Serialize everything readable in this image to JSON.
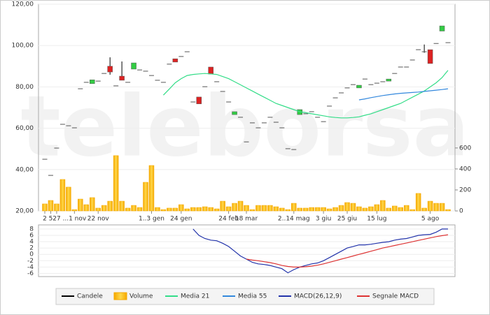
{
  "chart_data": [
    {
      "type": "candlestick",
      "watermark": "teleborsa",
      "categories": [
        "2",
        "5",
        "27",
        null,
        null,
        "...1 nov",
        null,
        null,
        null,
        "22 nov",
        null,
        null,
        null,
        null,
        null,
        null,
        null,
        null,
        "1..3 gen",
        null,
        null,
        null,
        null,
        "24 gen",
        null,
        null,
        null,
        null,
        null,
        null,
        null,
        "24 feb",
        null,
        null,
        "18 mar",
        null,
        null,
        null,
        null,
        null,
        null,
        null,
        "2..14 mag",
        null,
        null,
        null,
        null,
        "3 giu",
        null,
        null,
        null,
        "25 giu",
        null,
        null,
        null,
        null,
        "15 lug",
        null,
        null,
        null,
        null,
        null,
        null,
        null,
        null,
        "5 ago",
        null,
        null,
        null
      ],
      "ylim": [
        20,
        120
      ],
      "yticks": [
        {
          "value": 20,
          "label": "20,00"
        },
        {
          "value": 40,
          "label": "40,00"
        },
        {
          "value": 60,
          "label": "60,00"
        },
        {
          "value": 80,
          "label": "80,00"
        },
        {
          "value": 100,
          "label": "100,00"
        },
        {
          "value": 120,
          "label": "120,00"
        }
      ],
      "y2lim": [
        0,
        1970
      ],
      "y2ticks": [
        0,
        200,
        400,
        600
      ],
      "series": [
        {
          "name": "Candele",
          "color": "#000000",
          "up_color": "#33cc44",
          "down_color": "#dd2222",
          "open": [
            45,
            37.2,
            50.4,
            61.9,
            61.2,
            60.2,
            79.1,
            82.2,
            81.6,
            82.8,
            86.5,
            90,
            80.5,
            85.2,
            82.2,
            88.6,
            88.2,
            87.6,
            85.5,
            83.2,
            82.2,
            91,
            93.6,
            94.7,
            97,
            72.7,
            75.1,
            80.1,
            89.6,
            82.5,
            77.8,
            72.7,
            66.6,
            65.3,
            53.4,
            62.6,
            60.2,
            62.6,
            65.3,
            62.9,
            60.2,
            50.1,
            49.7,
            66.6,
            67,
            68,
            65.3,
            63.2,
            70.7,
            74.7,
            77.1,
            79.5,
            81.1,
            79.5,
            83.8,
            81.1,
            81.8,
            82.5,
            82.8,
            86.5,
            89.6,
            89.6,
            93,
            98,
            97,
            98,
            101,
            107,
            101.4
          ],
          "close": [
            45,
            37.2,
            50.4,
            61.9,
            61.2,
            60.2,
            79.1,
            82.2,
            83.4,
            82.8,
            86.5,
            87.2,
            80.5,
            83.2,
            82.2,
            91.6,
            88.2,
            87.6,
            85.5,
            83.2,
            82.2,
            91,
            92,
            94.7,
            97,
            72.7,
            71.8,
            80.1,
            86.2,
            82.5,
            77.8,
            72.7,
            68,
            65.3,
            53.4,
            62.6,
            60.2,
            62.6,
            65.3,
            62.9,
            60.2,
            50.1,
            49.7,
            69,
            67,
            68,
            65.3,
            63.2,
            70.7,
            74.7,
            77.1,
            79.5,
            81.1,
            80.8,
            83.8,
            81.1,
            81.8,
            82.5,
            83.8,
            86.5,
            89.6,
            89.6,
            93,
            98,
            97,
            91.3,
            101,
            109.5,
            101.4
          ],
          "high": [
            null,
            null,
            null,
            null,
            null,
            null,
            null,
            null,
            null,
            null,
            null,
            94.3,
            null,
            92.3,
            null,
            null,
            null,
            null,
            null,
            null,
            null,
            null,
            null,
            null,
            null,
            null,
            null,
            null,
            null,
            null,
            null,
            null,
            null,
            null,
            null,
            null,
            null,
            null,
            null,
            null,
            null,
            null,
            null,
            null,
            null,
            null,
            null,
            null,
            null,
            null,
            null,
            null,
            null,
            null,
            null,
            null,
            null,
            null,
            null,
            null,
            null,
            null,
            null,
            null,
            100.5,
            null,
            null,
            null,
            null
          ],
          "low": [
            null,
            null,
            null,
            null,
            null,
            null,
            null,
            null,
            null,
            null,
            null,
            85.9,
            null,
            83.2,
            null,
            null,
            null,
            null,
            null,
            null,
            null,
            null,
            null,
            null,
            null,
            null,
            null,
            null,
            null,
            null,
            null,
            null,
            null,
            null,
            null,
            null,
            null,
            null,
            null,
            null,
            null,
            null,
            null,
            null,
            null,
            null,
            null,
            null,
            null,
            null,
            null,
            null,
            null,
            null,
            null,
            null,
            null,
            null,
            null,
            null,
            null,
            null,
            null,
            null,
            96.5,
            null,
            null,
            null,
            null
          ]
        },
        {
          "name": "Volume",
          "type": "bar",
          "axis": "y2",
          "color": "#f5a800",
          "values": [
            67,
            100,
            67,
            300,
            227,
            13,
            113,
            60,
            127,
            27,
            53,
            93,
            527,
            93,
            27,
            53,
            33,
            273,
            433,
            33,
            13,
            27,
            27,
            60,
            20,
            33,
            33,
            40,
            33,
            20,
            93,
            40,
            73,
            93,
            53,
            13,
            53,
            53,
            53,
            40,
            27,
            13,
            73,
            27,
            27,
            33,
            33,
            33,
            20,
            33,
            53,
            80,
            73,
            40,
            27,
            40,
            60,
            100,
            27,
            47,
            33,
            53,
            13,
            167,
            27,
            93,
            73,
            73,
            13
          ]
        },
        {
          "name": "Media 21",
          "type": "line",
          "color": "#33dd88",
          "values": [
            null,
            null,
            null,
            null,
            null,
            null,
            null,
            null,
            null,
            null,
            null,
            null,
            null,
            null,
            null,
            null,
            null,
            null,
            null,
            null,
            76,
            79,
            82,
            84,
            85.5,
            86,
            86.3,
            86.5,
            86.3,
            86,
            85,
            84,
            82.5,
            81,
            79.5,
            78,
            76.5,
            75,
            73.5,
            72,
            71,
            70,
            69,
            68,
            67.5,
            67,
            66.5,
            66,
            65.5,
            65.2,
            65,
            65,
            65.2,
            65.5,
            66.3,
            67,
            68,
            69,
            70,
            71,
            72,
            73.5,
            75,
            76.5,
            78,
            80,
            82,
            84.5,
            88
          ]
        },
        {
          "name": "Media 55",
          "type": "line",
          "color": "#3388dd",
          "values": [
            null,
            null,
            null,
            null,
            null,
            null,
            null,
            null,
            null,
            null,
            null,
            null,
            null,
            null,
            null,
            null,
            null,
            null,
            null,
            null,
            null,
            null,
            null,
            null,
            null,
            null,
            null,
            null,
            null,
            null,
            null,
            null,
            null,
            null,
            null,
            null,
            null,
            null,
            null,
            null,
            null,
            null,
            null,
            null,
            null,
            null,
            null,
            null,
            null,
            null,
            null,
            null,
            null,
            73.7,
            74.2,
            74.8,
            75.3,
            75.8,
            76.2,
            76.6,
            76.9,
            77.1,
            77.3,
            77.5,
            77.8,
            78.1,
            78.4,
            78.7,
            79.1
          ]
        }
      ]
    },
    {
      "type": "line",
      "ylim": [
        -7,
        9.3
      ],
      "yticks": [
        8,
        6,
        4,
        2,
        0,
        -2,
        -4,
        -6
      ],
      "series": [
        {
          "name": "MACD(26,12,9)",
          "color": "#2233aa",
          "values": [
            null,
            null,
            null,
            null,
            null,
            null,
            null,
            null,
            null,
            null,
            null,
            null,
            null,
            null,
            null,
            null,
            null,
            null,
            null,
            null,
            null,
            null,
            null,
            null,
            null,
            8,
            6,
            5,
            4.5,
            4.3,
            3.5,
            2.5,
            1,
            -0.5,
            -1.5,
            -2.5,
            -3,
            -3.2,
            -3.5,
            -4,
            -4.5,
            -5.8,
            -4.8,
            -4,
            -3.5,
            -3,
            -2.7,
            -2,
            -1,
            0,
            1,
            2,
            2.5,
            3,
            3,
            3.2,
            3.5,
            3.8,
            4,
            4.5,
            4.8,
            5,
            5.5,
            6,
            6.2,
            6.3,
            7,
            8,
            8
          ]
        },
        {
          "name": "Segnale MACD",
          "color": "#dd3333",
          "values": [
            null,
            null,
            null,
            null,
            null,
            null,
            null,
            null,
            null,
            null,
            null,
            null,
            null,
            null,
            null,
            null,
            null,
            null,
            null,
            null,
            null,
            null,
            null,
            null,
            null,
            null,
            null,
            null,
            null,
            null,
            null,
            null,
            null,
            null,
            -1.5,
            -1.8,
            -2,
            -2.3,
            -2.6,
            -3,
            -3.5,
            -3.8,
            -4,
            -4,
            -3.9,
            -3.7,
            -3.4,
            -3,
            -2.5,
            -2,
            -1.5,
            -1,
            -0.5,
            0,
            0.5,
            1,
            1.5,
            2,
            2.4,
            2.8,
            3.2,
            3.6,
            4,
            4.4,
            4.8,
            5.2,
            5.6,
            5.9,
            6.2
          ]
        }
      ]
    }
  ]
}
